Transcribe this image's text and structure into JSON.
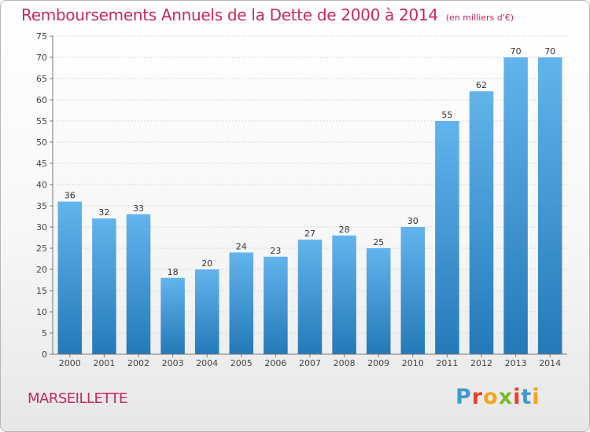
{
  "header": {
    "title": "Remboursements Annuels de la Dette de 2000 à 2014",
    "unit": "(en milliers d'€)"
  },
  "footer": {
    "town": "MARSEILLETTE",
    "logo": "Proxiti",
    "logo_colors": [
      "#3d9ad1",
      "#e8402a",
      "#f3a41d",
      "#7ab82e",
      "#e8402a",
      "#3d9ad1",
      "#f3a41d"
    ]
  },
  "colors": {
    "accent": "#c8295a",
    "bar_top": "#62b4ec",
    "bar_bottom": "#2479b8"
  },
  "chart_data": {
    "type": "bar",
    "title": "Remboursements Annuels de la Dette de 2000 à 2014",
    "subtitle": "(en milliers d'€)",
    "categories": [
      "2000",
      "2001",
      "2002",
      "2003",
      "2004",
      "2005",
      "2006",
      "2007",
      "2008",
      "2009",
      "2010",
      "2011",
      "2012",
      "2013",
      "2014"
    ],
    "values": [
      36,
      32,
      33,
      18,
      20,
      24,
      23,
      27,
      28,
      25,
      30,
      55,
      62,
      70,
      70
    ],
    "ylim": [
      0,
      75
    ],
    "yticks": [
      0,
      5,
      10,
      15,
      20,
      25,
      30,
      35,
      40,
      45,
      50,
      55,
      60,
      65,
      70,
      75
    ],
    "grid": true,
    "data_labels": true
  }
}
